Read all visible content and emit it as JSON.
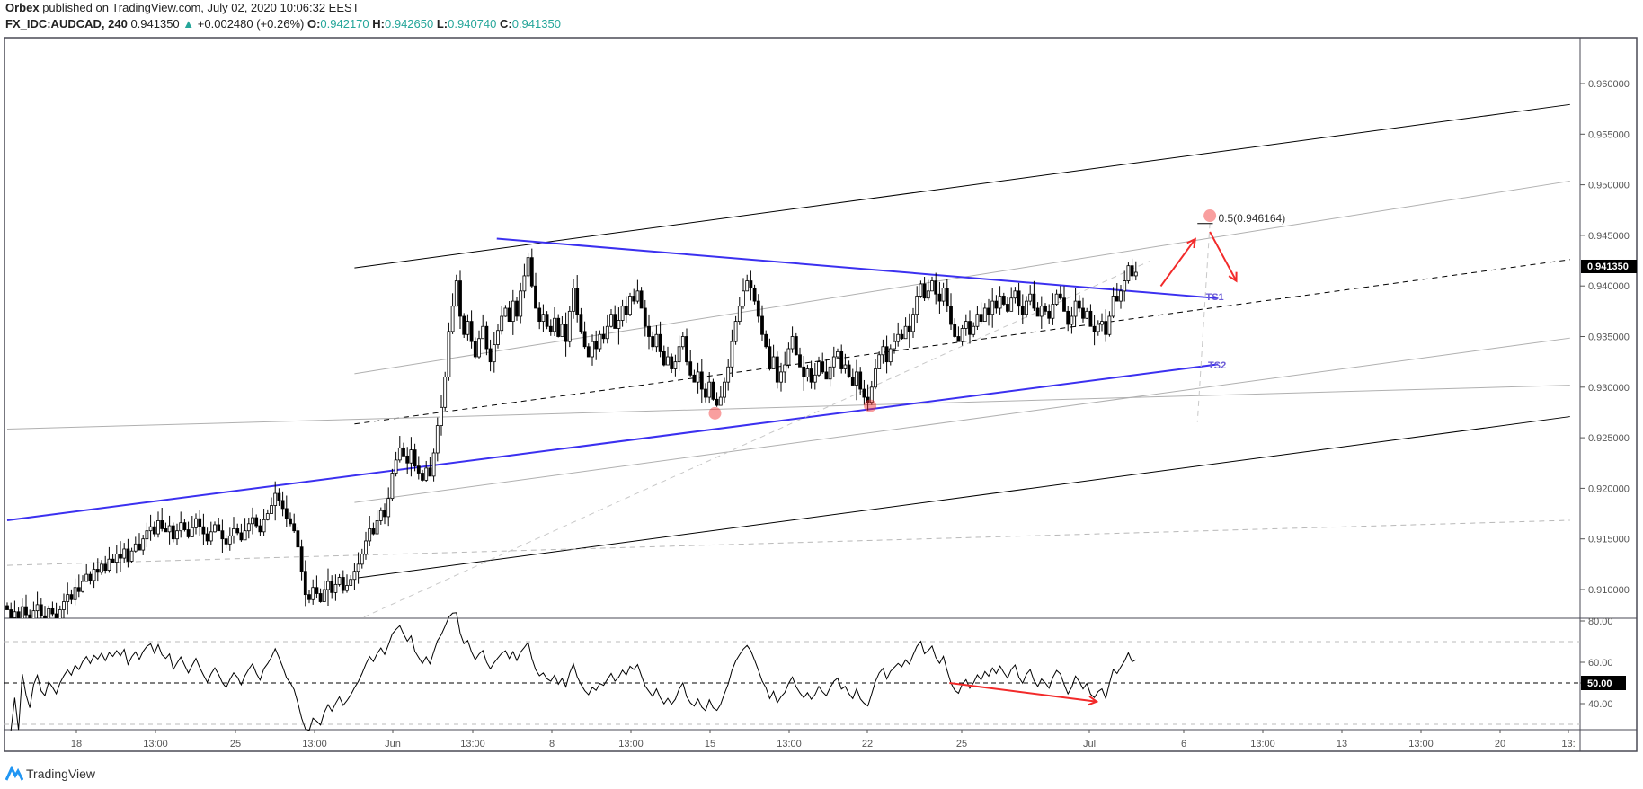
{
  "header": {
    "publisher": "Orbex",
    "published_text": "published on TradingView.com, July 02, 2020 10:06:32 EEST",
    "symbol": "FX_IDC:AUDCAD, 240",
    "last": "0.941350",
    "change": "+0.002480 (+0.26%)",
    "o_label": "O:",
    "o": "0.942170",
    "h_label": "H:",
    "h": "0.942650",
    "l_label": "L:",
    "l": "0.940740",
    "c_label": "C:",
    "c": "0.941350"
  },
  "footer": {
    "brand": "TradingView"
  },
  "colors": {
    "up_arrow": "#26a69a",
    "trendline": "#3b30f0",
    "annotation": "#f22a2a",
    "label_ts": "#6b5bd6"
  },
  "chart_data": [
    {
      "type": "candlestick",
      "symbol": "AUDCAD",
      "timeframe": "240",
      "ylim": [
        0.9065,
        0.964
      ],
      "y_ticks": [
        "0.960000",
        "0.955000",
        "0.950000",
        "0.945000",
        "0.940000",
        "0.935000",
        "0.930000",
        "0.925000",
        "0.920000",
        "0.915000",
        "0.910000"
      ],
      "x_ticks": [
        "18",
        "13:00",
        "25",
        "13:00",
        "Jun",
        "13:00",
        "8",
        "13:00",
        "15",
        "13:00",
        "22",
        "25",
        "Jul",
        "6",
        "13:00",
        "13",
        "13:00",
        "20",
        "13:"
      ],
      "last_price_label": "0.941350",
      "closes": [
        0.908,
        0.9072,
        0.9078,
        0.907,
        0.9083,
        0.9075,
        0.9068,
        0.9079,
        0.9085,
        0.9074,
        0.907,
        0.9081,
        0.9076,
        0.9069,
        0.908,
        0.9088,
        0.9095,
        0.909,
        0.9102,
        0.9098,
        0.9108,
        0.9115,
        0.9109,
        0.912,
        0.9117,
        0.9125,
        0.9119,
        0.913,
        0.9127,
        0.9135,
        0.9131,
        0.914,
        0.9128,
        0.9138,
        0.9145,
        0.9139,
        0.915,
        0.9158,
        0.9162,
        0.9155,
        0.9168,
        0.916,
        0.9157,
        0.9163,
        0.915,
        0.9158,
        0.9166,
        0.9159,
        0.9152,
        0.9161,
        0.917,
        0.9162,
        0.9155,
        0.9148,
        0.9157,
        0.9164,
        0.9158,
        0.915,
        0.9145,
        0.9153,
        0.916,
        0.9156,
        0.9149,
        0.9158,
        0.9165,
        0.9171,
        0.9163,
        0.9157,
        0.9169,
        0.9175,
        0.9183,
        0.9195,
        0.9188,
        0.918,
        0.917,
        0.9165,
        0.9158,
        0.9142,
        0.9118,
        0.9095,
        0.909,
        0.9102,
        0.9096,
        0.9088,
        0.91,
        0.9108,
        0.9097,
        0.9105,
        0.9112,
        0.9099,
        0.9104,
        0.911,
        0.9118,
        0.9125,
        0.9135,
        0.9148,
        0.916,
        0.9155,
        0.9168,
        0.9178,
        0.9172,
        0.919,
        0.9215,
        0.9228,
        0.924,
        0.9232,
        0.9225,
        0.9238,
        0.9222,
        0.9215,
        0.9208,
        0.922,
        0.9212,
        0.9235,
        0.9262,
        0.928,
        0.931,
        0.9355,
        0.938,
        0.9405,
        0.937,
        0.9352,
        0.9365,
        0.9345,
        0.933,
        0.9348,
        0.936,
        0.9338,
        0.9325,
        0.9342,
        0.9356,
        0.937,
        0.9378,
        0.9365,
        0.9385,
        0.937,
        0.9395,
        0.941,
        0.9428,
        0.94,
        0.9378,
        0.9365,
        0.9372,
        0.936,
        0.9355,
        0.9368,
        0.935,
        0.9362,
        0.9345,
        0.9375,
        0.9398,
        0.9372,
        0.9355,
        0.934,
        0.933,
        0.9345,
        0.9338,
        0.9352,
        0.9348,
        0.936,
        0.9372,
        0.9358,
        0.9366,
        0.938,
        0.9372,
        0.939,
        0.9385,
        0.9395,
        0.9378,
        0.936,
        0.935,
        0.934,
        0.9352,
        0.9335,
        0.9322,
        0.933,
        0.9318,
        0.9325,
        0.934,
        0.935,
        0.9325,
        0.9312,
        0.9305,
        0.9315,
        0.9298,
        0.929,
        0.9305,
        0.9288,
        0.9282,
        0.929,
        0.9305,
        0.932,
        0.9345,
        0.9365,
        0.938,
        0.9395,
        0.9405,
        0.9398,
        0.9385,
        0.937,
        0.9352,
        0.934,
        0.9318,
        0.933,
        0.9305,
        0.9315,
        0.9322,
        0.9338,
        0.935,
        0.9332,
        0.932,
        0.931,
        0.9318,
        0.9305,
        0.9312,
        0.9325,
        0.9315,
        0.9308,
        0.932,
        0.933,
        0.9335,
        0.9318,
        0.9322,
        0.931,
        0.9302,
        0.9315,
        0.9298,
        0.929,
        0.9285,
        0.93,
        0.9318,
        0.9332,
        0.934,
        0.9325,
        0.9338,
        0.9345,
        0.9352,
        0.9348,
        0.936,
        0.9355,
        0.9372,
        0.939,
        0.9402,
        0.9388,
        0.9395,
        0.9405,
        0.9392,
        0.9385,
        0.9398,
        0.938,
        0.9362,
        0.935,
        0.9345,
        0.9358,
        0.9365,
        0.9352,
        0.936,
        0.9372,
        0.9365,
        0.9378,
        0.9372,
        0.9385,
        0.9378,
        0.939,
        0.9382,
        0.9375,
        0.9388,
        0.9395,
        0.938,
        0.9372,
        0.9385,
        0.9392,
        0.9378,
        0.937,
        0.938,
        0.9375,
        0.9368,
        0.9382,
        0.9392,
        0.9388,
        0.9375,
        0.9362,
        0.937,
        0.9385,
        0.9378,
        0.9368,
        0.9375,
        0.936,
        0.9355,
        0.9362,
        0.9365,
        0.9352,
        0.937,
        0.939,
        0.9385,
        0.9395,
        0.9405,
        0.942,
        0.941,
        0.94135
      ],
      "drawings": [
        {
          "name": "upper-channel-line",
          "style": "solid",
          "color": "#000000",
          "from": [
            92,
            0.94178
          ],
          "to": [
            414,
            0.95793
          ]
        },
        {
          "name": "lower-channel-line",
          "style": "solid",
          "color": "#000000",
          "from": [
            93,
            0.91115
          ],
          "to": [
            414,
            0.92709
          ]
        },
        {
          "name": "upper-inner-channel-line",
          "style": "solid",
          "color": "#b0b0b0",
          "from": [
            92,
            0.93133
          ],
          "to": [
            414,
            0.95037
          ]
        },
        {
          "name": "lower-inner-channel-line",
          "style": "solid",
          "color": "#b0b0b0",
          "from": [
            92,
            0.9186
          ],
          "to": [
            414,
            0.93485
          ]
        },
        {
          "name": "median-channel-line",
          "style": "dashed",
          "color": "#000000",
          "from": [
            92,
            0.92636
          ],
          "to": [
            414,
            0.94261
          ]
        },
        {
          "name": "long-gray-line",
          "style": "solid",
          "color": "#b0b0b0",
          "from": [
            0,
            0.92585
          ],
          "to": [
            414,
            0.93019
          ]
        },
        {
          "name": "long-gray-dashed-line",
          "style": "dashed",
          "color": "#b8b8b8",
          "from": [
            0,
            0.91239
          ],
          "to": [
            414,
            0.91684
          ]
        },
        {
          "name": "upper-blue-trendline",
          "style": "solid",
          "color": "#3b30f0",
          "from": [
            129.7,
            0.94468
          ],
          "to": [
            320.8,
            0.93878
          ]
        },
        {
          "name": "lower-blue-trendline",
          "style": "solid",
          "color": "#3b30f0",
          "from": [
            0,
            0.91684
          ],
          "to": [
            320.8,
            0.93226
          ]
        },
        {
          "name": "fib-diagonal",
          "style": "dashed",
          "color": "#c8c8c8",
          "from": [
            94.5,
            0.90728
          ],
          "to": [
            302.8,
            0.94248
          ]
        },
        {
          "name": "fib-vertical",
          "style": "dashed",
          "color": "#c8c8c8",
          "from": [
            318.6,
            0.94621
          ],
          "to": [
            315.3,
            0.92655
          ]
        },
        {
          "name": "fib-level-line",
          "style": "solid",
          "color": "#000000",
          "from": [
            315.3,
            0.946164
          ],
          "to": [
            319.4,
            0.946164
          ]
        }
      ],
      "fib_label": "0.5(0.946164)",
      "markers": [
        [
          318.6,
          0.94694
        ],
        [
          187.5,
          0.92742
        ],
        [
          228.6,
          0.92815
        ]
      ],
      "arrows": [
        {
          "from": [
            305.6,
            0.93998
          ],
          "to": [
            314.7,
            0.94463
          ]
        },
        {
          "from": [
            318.6,
            0.94535
          ],
          "to": [
            325.6,
            0.94049
          ]
        }
      ],
      "labels": [
        {
          "text": "TS1",
          "at": [
            317.5,
            0.93903
          ]
        },
        {
          "text": "TS2",
          "at": [
            318.1,
            0.9323
          ]
        }
      ]
    },
    {
      "type": "line",
      "indicator": "RSI",
      "ylim": [
        25,
        85
      ],
      "y_ticks": [
        "80.00",
        "60.00",
        "50.00",
        "40.00"
      ],
      "bands": [
        70,
        50,
        30
      ],
      "current_label": "50.00",
      "arrow": {
        "from": [
          249.6,
          50
        ],
        "to": [
          288.6,
          41
        ]
      }
    }
  ]
}
